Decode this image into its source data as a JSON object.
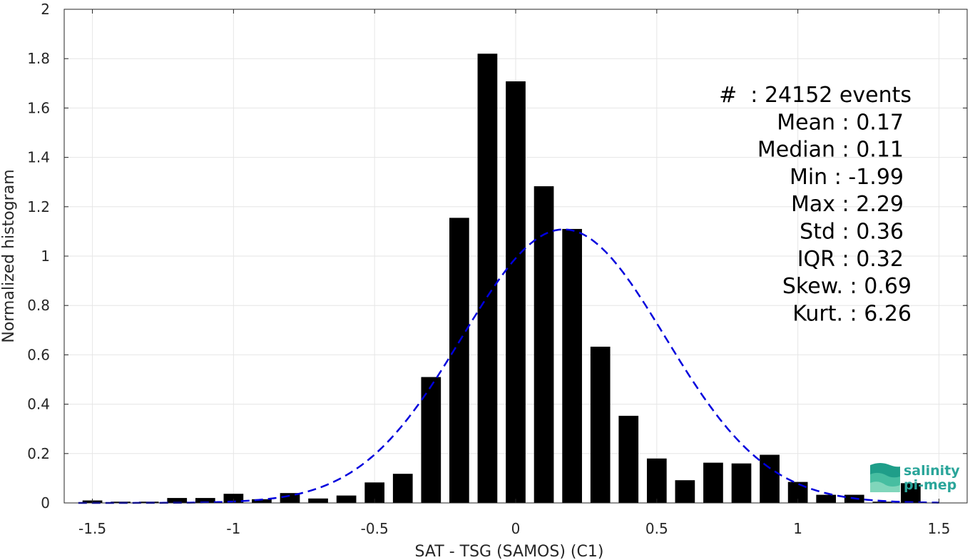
{
  "chart_data": {
    "type": "bar",
    "title": "",
    "xlabel": "SAT - TSG (SAMOS) (C1)",
    "ylabel": "Normalized histogram",
    "xlim": [
      -1.6,
      1.6
    ],
    "ylim": [
      0,
      2
    ],
    "grid": true,
    "bar_width": 0.07,
    "xticks": [
      -1.5,
      -1,
      -0.5,
      0,
      0.5,
      1,
      1.5
    ],
    "xtick_labels": [
      "-1.5",
      "-1",
      "-0.5",
      "0",
      "0.5",
      "1",
      "1.5"
    ],
    "yticks": [
      0,
      0.2,
      0.4,
      0.6,
      0.8,
      1,
      1.2,
      1.4,
      1.6,
      1.8,
      2
    ],
    "ytick_labels": [
      "0",
      "0.2",
      "0.4",
      "0.6",
      "0.8",
      "1",
      "1.2",
      "1.4",
      "1.6",
      "1.8",
      "2"
    ],
    "bars": {
      "x": [
        -1.5,
        -1.4,
        -1.3,
        -1.2,
        -1.1,
        -1.0,
        -0.9,
        -0.8,
        -0.7,
        -0.6,
        -0.5,
        -0.4,
        -0.3,
        -0.2,
        -0.1,
        0.0,
        0.1,
        0.2,
        0.3,
        0.4,
        0.5,
        0.6,
        0.7,
        0.8,
        0.9,
        1.0,
        1.1,
        1.2,
        1.3,
        1.4,
        1.5
      ],
      "values": [
        0.01,
        0.005,
        0.005,
        0.02,
        0.02,
        0.037,
        0.015,
        0.04,
        0.018,
        0.03,
        0.083,
        0.118,
        0.51,
        1.155,
        1.82,
        1.708,
        1.283,
        1.11,
        0.633,
        0.353,
        0.18,
        0.092,
        0.163,
        0.16,
        0.195,
        0.085,
        0.033,
        0.033,
        0.005,
        0.08,
        0.0
      ],
      "color": "#000000"
    },
    "fit_curve": {
      "style": "dashed",
      "color": "#0000dd",
      "mean": 0.17,
      "std": 0.36,
      "x_start": -1.55,
      "x_end": 1.5
    },
    "stats_lines": [
      "#  : 24152 events",
      "Mean : 0.17",
      "Median : 0.11",
      "Min : -1.99",
      "Max : 2.29",
      "Std : 0.36",
      "IQR : 0.32",
      "Skew. : 0.69",
      "Kurt. : 6.26"
    ]
  },
  "logo": {
    "line1": "salinity",
    "line2": "pi-mep",
    "colors": [
      "#1f9e89",
      "#4fc3a6",
      "#8fdcc2"
    ]
  }
}
